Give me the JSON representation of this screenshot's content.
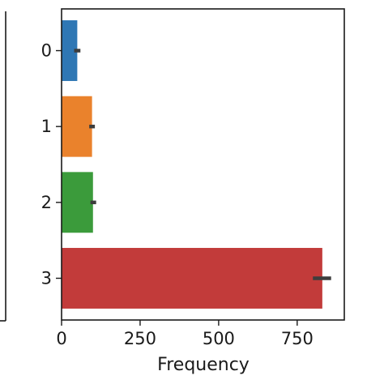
{
  "chart_data": {
    "type": "bar",
    "orientation": "horizontal",
    "categories": [
      "0",
      "1",
      "2",
      "3"
    ],
    "values": [
      50,
      97,
      100,
      830
    ],
    "error_bars": [
      {
        "low": 40,
        "high": 60
      },
      {
        "low": 88,
        "high": 106
      },
      {
        "low": 92,
        "high": 110
      },
      {
        "low": 800,
        "high": 858
      }
    ],
    "colors": [
      "#2f77b4",
      "#ea822c",
      "#3b9b3b",
      "#c23b3a"
    ],
    "error_color": "#3d3d3d",
    "xlim": [
      0,
      900
    ],
    "x_ticks": [
      0,
      250,
      500,
      750
    ],
    "x_tick_labels": [
      "0",
      "250",
      "500",
      "750"
    ],
    "xlabel": "Frequency",
    "ylabel": "",
    "title": "",
    "grid": false,
    "legend": "none"
  }
}
